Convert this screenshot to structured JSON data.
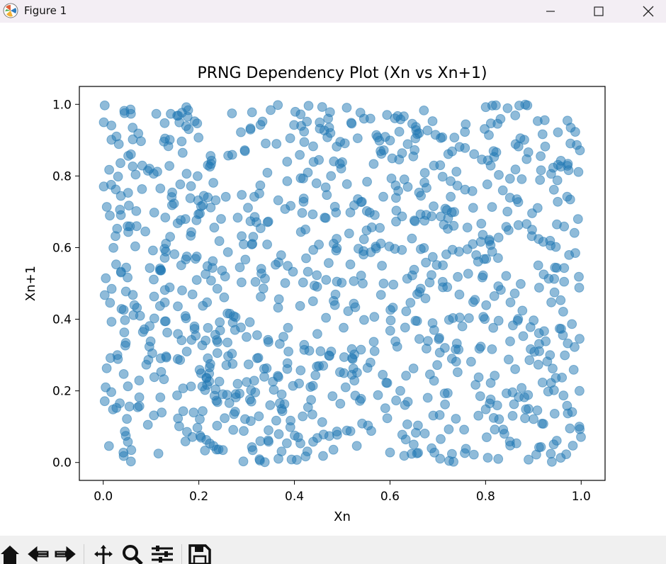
{
  "window": {
    "title": "Figure 1"
  },
  "toolbar": {
    "tools": [
      "home-icon",
      "back-icon",
      "forward-icon",
      "pan-icon",
      "zoom-icon",
      "configure-subplots-icon",
      "save-icon"
    ]
  },
  "chart_data": {
    "type": "scatter",
    "title": "PRNG Dependency Plot (Xn vs Xn+1)",
    "xlabel": "Xn",
    "ylabel": "Xn+1",
    "xlim": [
      -0.05,
      1.05
    ],
    "ylim": [
      -0.05,
      1.05
    ],
    "x_ticks": [
      "0.0",
      "0.2",
      "0.4",
      "0.6",
      "0.8",
      "1.0"
    ],
    "y_ticks": [
      "0.0",
      "0.2",
      "0.4",
      "0.6",
      "0.8",
      "1.0"
    ],
    "grid": false,
    "marker_color": "#1f77b4",
    "marker_alpha": 0.5,
    "n_points": 1000,
    "x": [
      0.003,
      0.017,
      0.036,
      0.052,
      0.069,
      0.088,
      0.104,
      0.121,
      0.139,
      0.156,
      0.172,
      0.191,
      0.207,
      0.224,
      0.243,
      0.259,
      0.276,
      0.294,
      0.311,
      0.327,
      0.346,
      0.362,
      0.379,
      0.397,
      0.413,
      0.431,
      0.448,
      0.466,
      0.482,
      0.499,
      0.517,
      0.534,
      0.551,
      0.568,
      0.586,
      0.603,
      0.619,
      0.637,
      0.654,
      0.671,
      0.689,
      0.706,
      0.722,
      0.739,
      0.757,
      0.774,
      0.791,
      0.808,
      0.826,
      0.843,
      0.861,
      0.877,
      0.894,
      0.912,
      0.929,
      0.947,
      0.963,
      0.981,
      0.997,
      0.012,
      0.044,
      0.079,
      0.113,
      0.148,
      0.183,
      0.218,
      0.253,
      0.288,
      0.322,
      0.357,
      0.392,
      0.427,
      0.461,
      0.496,
      0.531,
      0.566,
      0.601,
      0.636,
      0.671,
      0.706,
      0.741,
      0.776,
      0.811,
      0.846,
      0.881,
      0.916,
      0.951,
      0.986,
      0.027,
      0.062,
      0.097,
      0.132,
      0.167,
      0.202,
      0.237,
      0.272,
      0.307,
      0.342,
      0.377,
      0.412,
      0.447,
      0.482,
      0.517,
      0.552,
      0.587,
      0.622,
      0.657,
      0.692,
      0.727,
      0.762,
      0.797,
      0.832,
      0.867,
      0.902,
      0.937,
      0.972
    ],
    "y": [
      0.997,
      0.941,
      0.836,
      0.753,
      0.702,
      0.645,
      0.592,
      0.536,
      0.489,
      0.436,
      0.409,
      0.373,
      0.327,
      0.275,
      0.226,
      0.189,
      0.142,
      0.088,
      0.043,
      0.009,
      0.058,
      0.117,
      0.163,
      0.214,
      0.257,
      0.312,
      0.359,
      0.404,
      0.451,
      0.502,
      0.553,
      0.597,
      0.648,
      0.691,
      0.742,
      0.793,
      0.846,
      0.889,
      0.937,
      0.983,
      0.953,
      0.906,
      0.861,
      0.812,
      0.762,
      0.711,
      0.667,
      0.618,
      0.571,
      0.521,
      0.472,
      0.424,
      0.378,
      0.331,
      0.282,
      0.236,
      0.187,
      0.141,
      0.093,
      0.046,
      0.982,
      0.897,
      0.812,
      0.723,
      0.633,
      0.548,
      0.461,
      0.377,
      0.291,
      0.203,
      0.117,
      0.031,
      0.078,
      0.164,
      0.251,
      0.337,
      0.426,
      0.513,
      0.599,
      0.687,
      0.773,
      0.861,
      0.947,
      0.989,
      0.901,
      0.816,
      0.728,
      0.641,
      0.553,
      0.468,
      0.381,
      0.293,
      0.207,
      0.121,
      0.036,
      0.091,
      0.176,
      0.263,
      0.351,
      0.437,
      0.523,
      0.611,
      0.698,
      0.784,
      0.872,
      0.958,
      0.917,
      0.829,
      0.742,
      0.656,
      0.568,
      0.482,
      0.396,
      0.309,
      0.222,
      0.137
    ]
  }
}
